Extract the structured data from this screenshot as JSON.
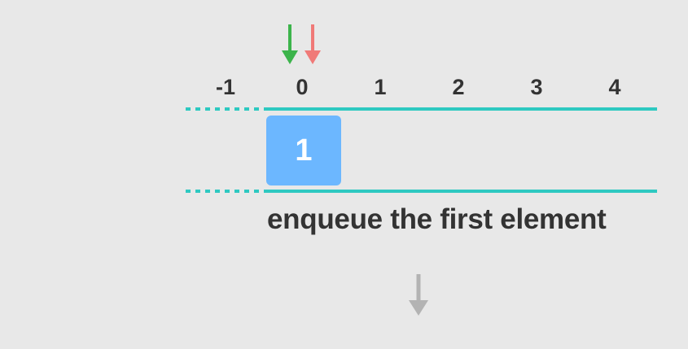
{
  "indices": [
    "-1",
    "0",
    "1",
    "2",
    "3",
    "4"
  ],
  "cells": [
    "1"
  ],
  "caption": "enqueue the first element",
  "colors": {
    "background": "#e8e8e8",
    "rail": "#2ec9c1",
    "cell": "#6cb7ff",
    "head_arrow": "#3cb44b",
    "tail_arrow": "#f07a78",
    "next_arrow": "#b3b3b3",
    "text": "#333333"
  },
  "pointers": [
    {
      "name": "head",
      "color_key": "head_arrow",
      "index": "0"
    },
    {
      "name": "tail",
      "color_key": "tail_arrow",
      "index": "0"
    }
  ]
}
